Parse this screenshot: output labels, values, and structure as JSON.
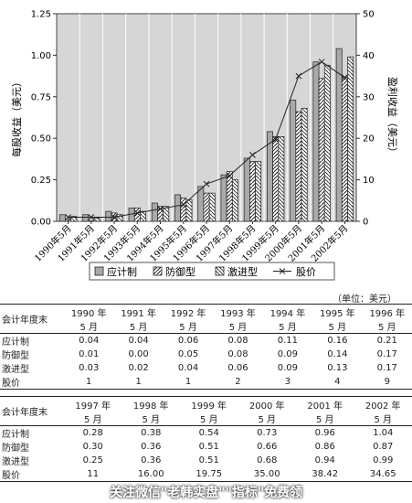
{
  "chart_data": {
    "type": "bar",
    "categories": [
      "1990年5月",
      "1991年5月",
      "1992年5月",
      "1993年5月",
      "1994年5月",
      "1995年5月",
      "1996年5月",
      "1997年5月",
      "1998年5月",
      "1999年5月",
      "2000年5月",
      "2001年5月",
      "2002年5月"
    ],
    "series": [
      {
        "name": "应计制",
        "axis": "left",
        "values": [
          0.04,
          0.04,
          0.06,
          0.08,
          0.11,
          0.16,
          0.21,
          0.28,
          0.38,
          0.54,
          0.73,
          0.96,
          1.04
        ]
      },
      {
        "name": "防御型",
        "axis": "left",
        "values": [
          0.01,
          0.0,
          0.05,
          0.08,
          0.09,
          0.14,
          0.17,
          0.3,
          0.36,
          0.51,
          0.66,
          0.86,
          0.87
        ]
      },
      {
        "name": "激进型",
        "axis": "left",
        "values": [
          0.03,
          0.02,
          0.04,
          0.06,
          0.09,
          0.13,
          0.17,
          0.25,
          0.36,
          0.51,
          0.68,
          0.94,
          0.99
        ]
      },
      {
        "name": "股价",
        "axis": "right",
        "type": "line",
        "values": [
          1,
          1,
          1,
          2,
          3,
          4,
          9,
          11,
          16.0,
          19.75,
          35.0,
          38.42,
          34.65
        ]
      }
    ],
    "ylabel": "每股收益（美元）",
    "y2label": "盈利收益（美元）",
    "ylim": [
      0,
      1.25
    ],
    "y2lim": [
      0,
      50
    ],
    "yticks": [
      "0.00",
      "0.25",
      "0.50",
      "0.75",
      "1.00",
      "1.25"
    ],
    "y2ticks": [
      "0",
      "10",
      "20",
      "30",
      "40",
      "50"
    ],
    "grid": true,
    "legend": "bottom"
  },
  "table": {
    "unit_note": "（单位：美元）",
    "row_header_label": "会计年度末",
    "part1": {
      "years": [
        "1990 年",
        "1991 年",
        "1992 年",
        "1993 年",
        "1994 年",
        "1995 年",
        "1996 年"
      ],
      "month": "5 月",
      "rows": [
        {
          "label": "应计制",
          "values": [
            "0.04",
            "0.04",
            "0.06",
            "0.08",
            "0.11",
            "0.16",
            "0.21"
          ]
        },
        {
          "label": "防御型",
          "values": [
            "0.01",
            "0.00",
            "0.05",
            "0.08",
            "0.09",
            "0.14",
            "0.17"
          ]
        },
        {
          "label": "激进型",
          "values": [
            "0.03",
            "0.02",
            "0.04",
            "0.06",
            "0.09",
            "0.13",
            "0.17"
          ]
        },
        {
          "label": "股价",
          "values": [
            "1",
            "1",
            "1",
            "2",
            "3",
            "4",
            "9"
          ]
        }
      ]
    },
    "part2": {
      "years": [
        "1997 年",
        "1998 年",
        "1999 年",
        "2000 年",
        "2001 年",
        "2002 年"
      ],
      "month": "5 月",
      "rows": [
        {
          "label": "应计制",
          "values": [
            "0.28",
            "0.38",
            "0.54",
            "0.73",
            "0.96",
            "1.04"
          ]
        },
        {
          "label": "防御型",
          "values": [
            "0.30",
            "0.36",
            "0.51",
            "0.66",
            "0.86",
            "0.87"
          ]
        },
        {
          "label": "激进型",
          "values": [
            "0.25",
            "0.36",
            "0.51",
            "0.68",
            "0.94",
            "0.99"
          ]
        },
        {
          "label": "股价",
          "values": [
            "11",
            "16.00",
            "19.75",
            "35.00",
            "38.42",
            "34.65"
          ]
        }
      ]
    }
  },
  "watermark": "关注微信\"老韩实盘\"\"指标\"免费领",
  "colors": {
    "plot_bg": "#d6d6d6",
    "bar_accrual": "#a9a9a9",
    "bar_defensive": "#ffffff",
    "bar_aggressive": "#ffffff",
    "line": "#222222"
  }
}
